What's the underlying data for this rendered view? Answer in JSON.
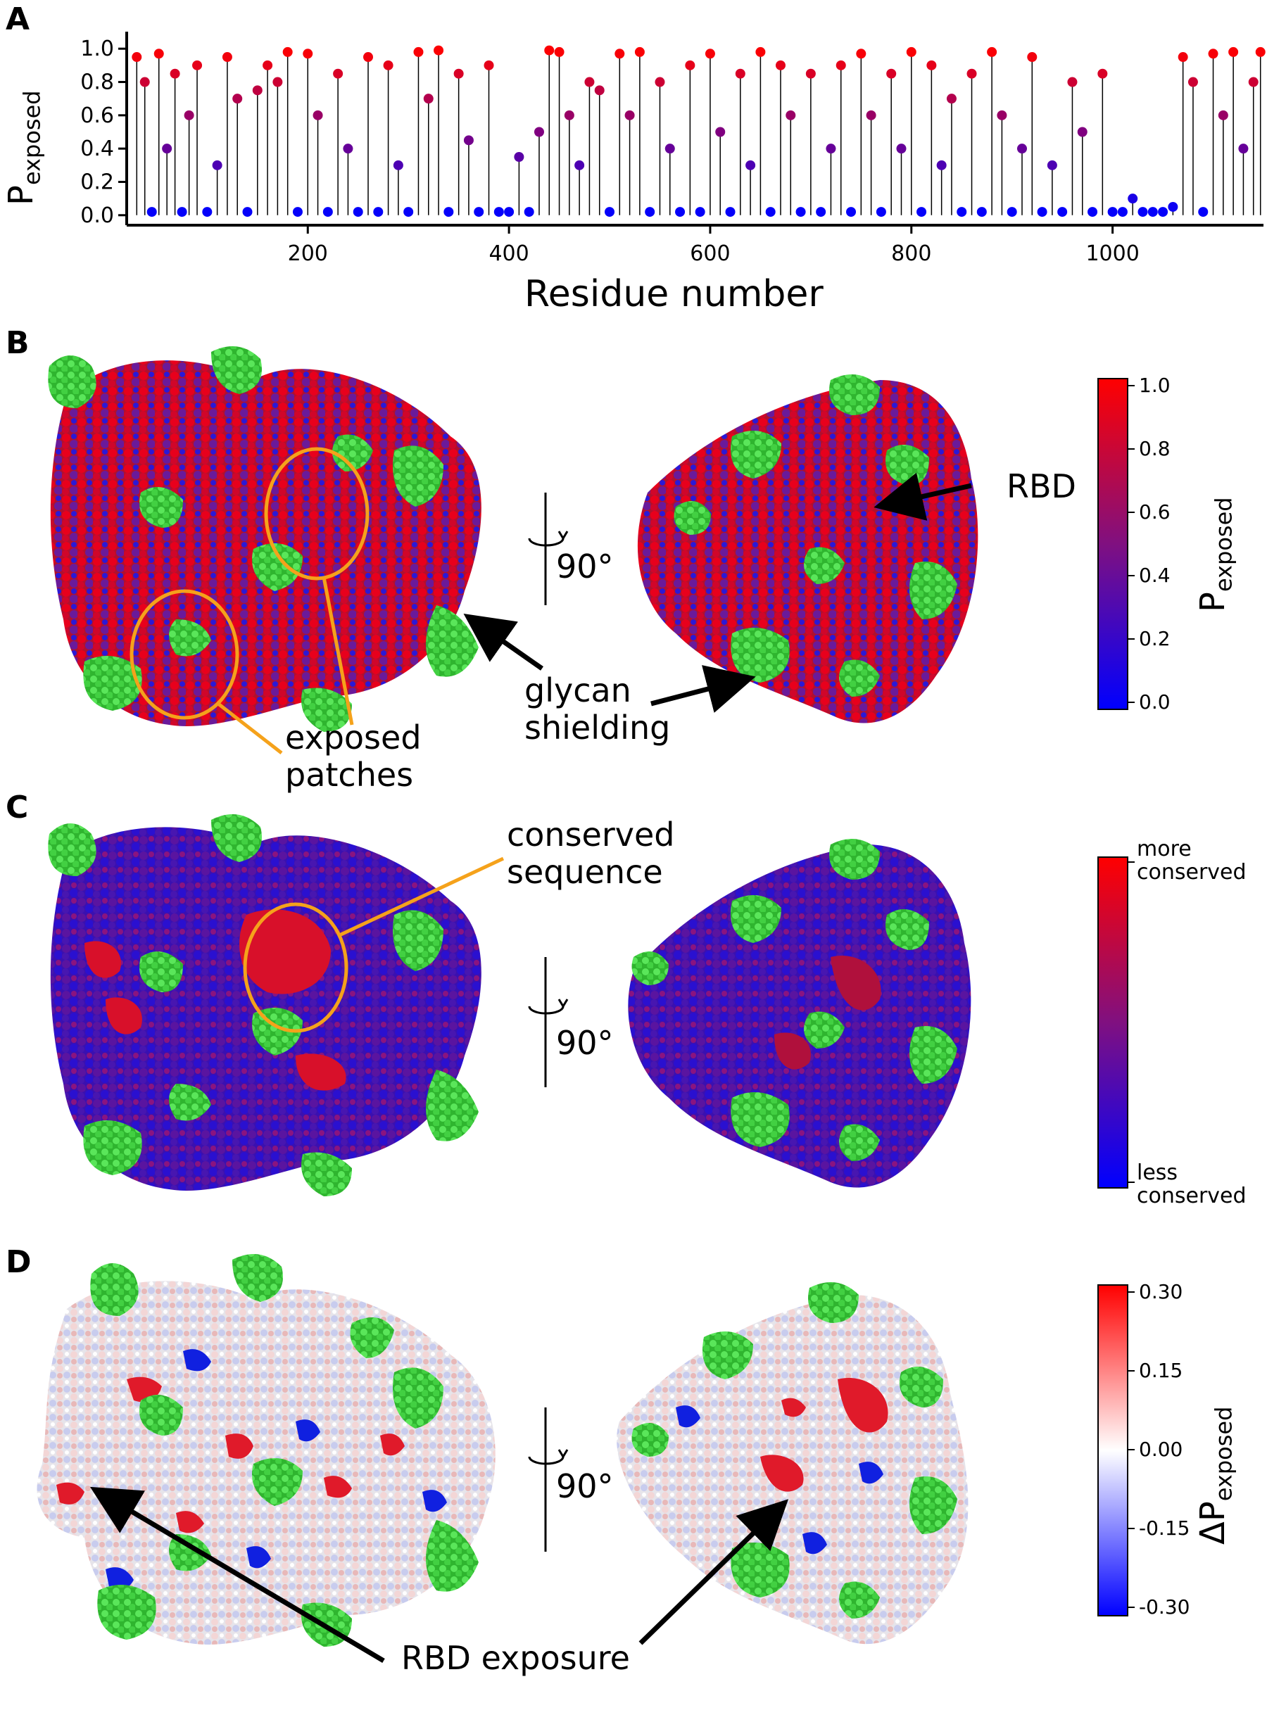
{
  "panels": {
    "A": "A",
    "B": "B",
    "C": "C",
    "D": "D"
  },
  "panel_a": {
    "ylabel_main": "P",
    "ylabel_sub": "exposed",
    "xlabel": "Residue number",
    "yticks": [
      "0.0",
      "0.2",
      "0.4",
      "0.6",
      "0.8",
      "1.0"
    ],
    "xticks": [
      "200",
      "400",
      "600",
      "800",
      "1000"
    ]
  },
  "chart_data": {
    "type": "scatter",
    "xlabel": "Residue number",
    "ylabel": "P_exposed",
    "xlim": [
      20,
      1150
    ],
    "ylim": [
      -0.06,
      1.06
    ],
    "x_ticks": [
      200,
      400,
      600,
      800,
      1000
    ],
    "y_ticks": [
      0.0,
      0.2,
      0.4,
      0.6,
      0.8,
      1.0
    ],
    "color_map": "blue-to-red by P_exposed",
    "series": [
      {
        "x": [
          30,
          38,
          45,
          52,
          60,
          68,
          75,
          82,
          90,
          100,
          110,
          120,
          130,
          140,
          150,
          160,
          170,
          180,
          190,
          200,
          210,
          220,
          230,
          240,
          250,
          260,
          270,
          280,
          290,
          300,
          310,
          320,
          330,
          340,
          350,
          360,
          370,
          380,
          390,
          400,
          410,
          420,
          430,
          440,
          450,
          460,
          470,
          480,
          490,
          500,
          510,
          520,
          530,
          540,
          550,
          560,
          570,
          580,
          590,
          600,
          610,
          620,
          630,
          640,
          650,
          660,
          670,
          680,
          690,
          700,
          710,
          720,
          730,
          740,
          750,
          760,
          770,
          780,
          790,
          800,
          810,
          820,
          830,
          840,
          850,
          860,
          870,
          880,
          890,
          900,
          910,
          920,
          930,
          940,
          950,
          960,
          970,
          980,
          990,
          1000,
          1010,
          1020,
          1030,
          1040,
          1050,
          1060,
          1070,
          1080,
          1090,
          1100,
          1110,
          1120,
          1130,
          1140,
          1147
        ],
        "values": [
          0.95,
          0.8,
          0.02,
          0.97,
          0.4,
          0.85,
          0.02,
          0.6,
          0.9,
          0.02,
          0.3,
          0.95,
          0.7,
          0.02,
          0.75,
          0.9,
          0.8,
          0.98,
          0.02,
          0.97,
          0.6,
          0.02,
          0.85,
          0.4,
          0.02,
          0.95,
          0.02,
          0.9,
          0.3,
          0.02,
          0.98,
          0.7,
          0.99,
          0.02,
          0.85,
          0.45,
          0.02,
          0.9,
          0.02,
          0.02,
          0.35,
          0.02,
          0.5,
          0.99,
          0.98,
          0.6,
          0.3,
          0.8,
          0.75,
          0.02,
          0.97,
          0.6,
          0.98,
          0.02,
          0.8,
          0.4,
          0.02,
          0.9,
          0.02,
          0.97,
          0.5,
          0.02,
          0.85,
          0.3,
          0.98,
          0.02,
          0.9,
          0.6,
          0.02,
          0.85,
          0.02,
          0.4,
          0.9,
          0.02,
          0.97,
          0.6,
          0.02,
          0.85,
          0.4,
          0.98,
          0.02,
          0.9,
          0.3,
          0.7,
          0.02,
          0.85,
          0.02,
          0.98,
          0.6,
          0.02,
          0.4,
          0.95,
          0.02,
          0.3,
          0.02,
          0.8,
          0.5,
          0.02,
          0.85,
          0.02,
          0.02,
          0.1,
          0.02,
          0.02,
          0.02,
          0.05,
          0.95,
          0.8,
          0.02,
          0.97,
          0.6,
          0.98,
          0.4,
          0.8,
          0.98
        ]
      }
    ]
  },
  "panel_b": {
    "label_exposed": "exposed\npatches",
    "label_glycan": "glycan\nshielding",
    "label_rbd": "RBD",
    "rotation": "90°",
    "colorbar_label_main": "P",
    "colorbar_label_sub": "exposed",
    "colorbar_ticks": [
      "1.0",
      "0.8",
      "0.6",
      "0.4",
      "0.2",
      "0.0"
    ]
  },
  "panel_c": {
    "label_conserved": "conserved\nsequence",
    "rotation": "90°",
    "colorbar_top": "more\nconserved",
    "colorbar_bottom": "less\nconserved"
  },
  "panel_d": {
    "label_rbd": "RBD exposure",
    "rotation": "90°",
    "colorbar_label_prefix": "ΔP",
    "colorbar_label_sub": "exposed",
    "colorbar_ticks": [
      "0.30",
      "0.15",
      "0.00",
      "-0.15",
      "-0.30"
    ]
  },
  "colors": {
    "red": "#e8001c",
    "blue": "#0000ff",
    "purple": "#7a1b9a",
    "green": "#3ed43e",
    "orange": "#f5a21b",
    "white": "#f4f2f2"
  }
}
